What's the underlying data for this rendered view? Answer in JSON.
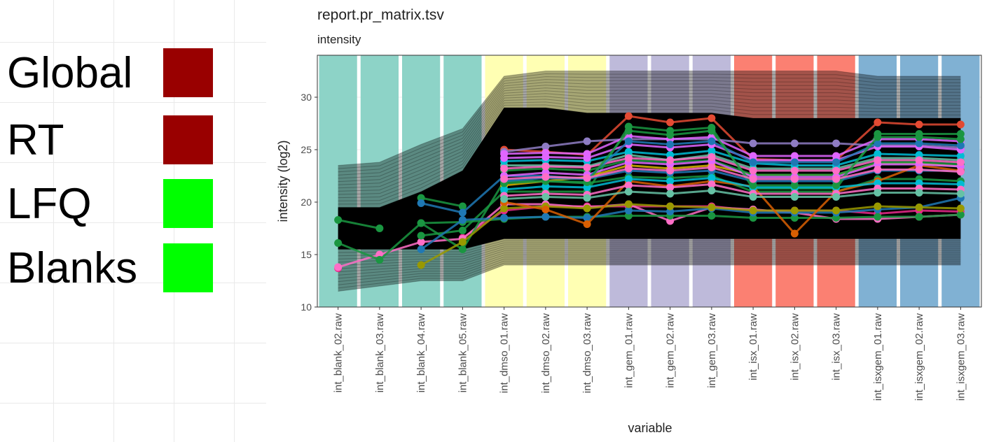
{
  "legend": {
    "items": [
      {
        "label": "Global",
        "color": "#990000"
      },
      {
        "label": "RT",
        "color": "#990000"
      },
      {
        "label": "LFQ",
        "color": "#00ff00"
      },
      {
        "label": "Blanks",
        "color": "#00ff00"
      }
    ]
  },
  "chart_data": {
    "type": "line",
    "title": "report.pr_matrix.tsv",
    "subtitle": "intensity",
    "xlabel": "variable",
    "ylabel": "intensity (log2)",
    "ylim": [
      10,
      34
    ],
    "yticks": [
      10,
      15,
      20,
      25,
      30
    ],
    "grid": true,
    "categories": [
      "int_blank_02.raw",
      "int_blank_03.raw",
      "int_blank_04.raw",
      "int_blank_05.raw",
      "int_dmso_01.raw",
      "int_dmso_02.raw",
      "int_dmso_03.raw",
      "int_gem_01.raw",
      "int_gem_02.raw",
      "int_gem_03.raw",
      "int_isx_01.raw",
      "int_isx_02.raw",
      "int_isx_03.raw",
      "int_isxgem_01.raw",
      "int_isxgem_02.raw",
      "int_isxgem_03.raw"
    ],
    "band_colors": [
      "#8dd3c7",
      "#8dd3c7",
      "#8dd3c7",
      "#8dd3c7",
      "#ffffb3",
      "#ffffb3",
      "#ffffb3",
      "#bebada",
      "#bebada",
      "#bebada",
      "#fb8072",
      "#fb8072",
      "#fb8072",
      "#80b1d3",
      "#80b1d3",
      "#80b1d3"
    ],
    "background_envelope": {
      "upper": [
        23.5,
        23.8,
        25.5,
        27,
        32,
        32.5,
        32.5,
        32.5,
        32.5,
        32.5,
        32.5,
        32.5,
        32.5,
        32,
        32,
        32
      ],
      "lower": [
        11.5,
        12,
        12.5,
        12.5,
        14,
        14,
        14,
        14,
        14,
        14,
        14,
        14,
        14,
        14,
        14,
        14
      ],
      "core_upper": [
        19.5,
        19.5,
        21,
        23,
        29,
        29,
        28.5,
        28.5,
        28.5,
        28.5,
        28,
        28,
        28,
        28,
        28,
        28
      ],
      "core_lower": [
        15.5,
        15.5,
        15.5,
        15.5,
        16.5,
        16.5,
        16.5,
        16.5,
        16.5,
        16.5,
        16.5,
        16.5,
        16.5,
        16.5,
        16.5,
        16.5
      ]
    },
    "series": [
      {
        "color": "#e7298a",
        "values": [
          13.7,
          null,
          null,
          16.6,
          19.2,
          19.6,
          19.6,
          19.6,
          19.6,
          19.6,
          19.2,
          19.2,
          19.2,
          18.9,
          19.2,
          19.1
        ]
      },
      {
        "color": "#ff6ec7",
        "values": [
          13.8,
          15.0,
          16.2,
          16.5,
          19.8,
          19.8,
          19.5,
          19.8,
          18.2,
          19.5,
          19.3,
          19.0,
          18.4,
          18.4,
          18.6,
          18.8
        ]
      },
      {
        "color": "#1a9641",
        "values": [
          18.3,
          17.5,
          null,
          null,
          null,
          null,
          null,
          null,
          null,
          null,
          null,
          null,
          null,
          null,
          null,
          null
        ]
      },
      {
        "color": "#1a9641",
        "values": [
          16.1,
          14.5,
          18.0,
          18.1,
          18.4,
          18.6,
          18.6,
          18.7,
          18.7,
          18.7,
          18.5,
          18.5,
          18.5,
          18.6,
          18.6,
          18.8
        ]
      },
      {
        "color": "#1a9641",
        "values": [
          null,
          null,
          20.4,
          19.6,
          null,
          null,
          null,
          null,
          null,
          null,
          null,
          null,
          null,
          null,
          null,
          null
        ]
      },
      {
        "color": "#1a9641",
        "values": [
          null,
          null,
          16.8,
          17.3,
          21.0,
          21.0,
          21.0,
          27.2,
          26.8,
          27.1,
          21.3,
          21.3,
          21.3,
          26.5,
          26.5,
          26.5
        ]
      },
      {
        "color": "#1a9641",
        "values": [
          null,
          null,
          18.0,
          15.5,
          22.0,
          22.0,
          21.8,
          22.4,
          22.3,
          22.5,
          21.0,
          21.0,
          21.0,
          22.2,
          22.2,
          22.0
        ]
      },
      {
        "color": "#1f78b4",
        "values": [
          null,
          null,
          19.9,
          19.0,
          22.5,
          22.5,
          22.2,
          23.0,
          22.8,
          23.0,
          22.0,
          22.0,
          22.0,
          23.0,
          23.0,
          23.0
        ]
      },
      {
        "color": "#1f78b4",
        "values": [
          null,
          null,
          15.5,
          18.3,
          18.5,
          18.6,
          18.5,
          19.2,
          19.1,
          19.4,
          19.0,
          19.0,
          19.0,
          19.3,
          19.5,
          20.4
        ]
      },
      {
        "color": "#999900",
        "values": [
          null,
          null,
          14.0,
          16.2,
          19.4,
          19.6,
          19.4,
          19.8,
          19.6,
          19.5,
          19.2,
          19.2,
          19.2,
          19.6,
          19.5,
          19.4
        ]
      },
      {
        "color": "#d95f02",
        "values": [
          null,
          null,
          null,
          null,
          20.0,
          19.3,
          17.9,
          22.0,
          21.5,
          22.0,
          21.5,
          17.0,
          21.0,
          22.0,
          23.5,
          23.0
        ]
      },
      {
        "color": "#e34a33",
        "values": [
          null,
          null,
          null,
          null,
          25.0,
          24.8,
          24.5,
          28.2,
          27.6,
          28.0,
          24.1,
          24.0,
          24.0,
          27.6,
          27.4,
          27.4
        ]
      },
      {
        "color": "#8e7cc3",
        "values": [
          null,
          null,
          null,
          null,
          24.8,
          25.3,
          25.8,
          26.0,
          26.0,
          26.0,
          25.6,
          25.6,
          25.6,
          25.4,
          25.4,
          25.2
        ]
      },
      {
        "color": "#d8b400",
        "values": [
          null,
          null,
          null,
          null,
          21.6,
          22.0,
          22.4,
          23.5,
          23.2,
          23.5,
          22.6,
          22.6,
          22.6,
          23.7,
          23.7,
          23.4
        ]
      },
      {
        "color": "#66c2a5",
        "values": [
          null,
          null,
          null,
          null,
          23.5,
          23.5,
          23.4,
          24.5,
          24.0,
          24.5,
          23.2,
          23.2,
          23.2,
          24.2,
          24.2,
          24.0
        ]
      },
      {
        "color": "#00bcd4",
        "values": [
          null,
          null,
          null,
          null,
          23.9,
          24.0,
          23.9,
          24.8,
          24.5,
          24.9,
          23.7,
          23.5,
          23.5,
          24.6,
          24.5,
          24.4
        ]
      },
      {
        "color": "#1a9641",
        "values": [
          null,
          null,
          null,
          null,
          23.0,
          23.2,
          23.0,
          24.0,
          23.8,
          24.0,
          22.6,
          22.6,
          22.6,
          23.8,
          23.8,
          23.6
        ]
      },
      {
        "color": "#e066ff",
        "values": [
          null,
          null,
          null,
          null,
          24.2,
          24.3,
          24.2,
          25.5,
          25.2,
          25.5,
          24.0,
          24.0,
          24.0,
          25.3,
          25.3,
          25.0
        ]
      },
      {
        "color": "#e066ff",
        "values": [
          null,
          null,
          null,
          null,
          22.5,
          22.8,
          22.6,
          23.8,
          23.6,
          23.9,
          22.4,
          22.4,
          22.4,
          23.6,
          23.6,
          23.4
        ]
      },
      {
        "color": "#ff6ec7",
        "values": [
          null,
          null,
          null,
          null,
          23.2,
          23.4,
          23.3,
          24.2,
          24.0,
          24.3,
          23.0,
          23.0,
          23.0,
          24.0,
          24.0,
          23.8
        ]
      },
      {
        "color": "#00bcd4",
        "values": [
          null,
          null,
          null,
          null,
          21.2,
          21.5,
          21.4,
          22.2,
          22.0,
          22.3,
          21.4,
          21.4,
          21.4,
          21.8,
          21.8,
          21.7
        ]
      },
      {
        "color": "#ff6ec7",
        "values": [
          null,
          null,
          null,
          null,
          20.6,
          20.8,
          20.7,
          21.6,
          21.4,
          21.7,
          20.8,
          20.8,
          20.8,
          21.3,
          21.3,
          21.2
        ]
      },
      {
        "color": "#e066ff",
        "values": [
          null,
          null,
          null,
          null,
          24.6,
          24.7,
          24.6,
          26.3,
          26.0,
          26.2,
          24.4,
          24.4,
          24.4,
          26.0,
          26.0,
          25.8
        ]
      },
      {
        "color": "#1f78b4",
        "values": [
          null,
          null,
          null,
          null,
          22.0,
          22.3,
          22.2,
          25.8,
          25.5,
          25.8,
          23.8,
          23.8,
          23.8,
          25.6,
          25.6,
          25.4
        ]
      },
      {
        "color": "#1a9641",
        "values": [
          null,
          null,
          null,
          null,
          21.8,
          22.0,
          21.9,
          26.8,
          26.4,
          26.8,
          21.6,
          21.6,
          21.6,
          26.2,
          26.2,
          26.0
        ]
      },
      {
        "color": "#66c2a5",
        "values": [
          null,
          null,
          null,
          null,
          20.3,
          20.5,
          20.4,
          21.0,
          20.8,
          21.1,
          20.5,
          20.5,
          20.5,
          20.9,
          20.9,
          20.8
        ]
      },
      {
        "color": "#ff6ec7",
        "values": [
          null,
          null,
          null,
          null,
          22.2,
          22.4,
          22.3,
          23.2,
          23.0,
          23.3,
          22.2,
          22.2,
          22.2,
          23.1,
          23.1,
          22.9
        ]
      }
    ]
  }
}
